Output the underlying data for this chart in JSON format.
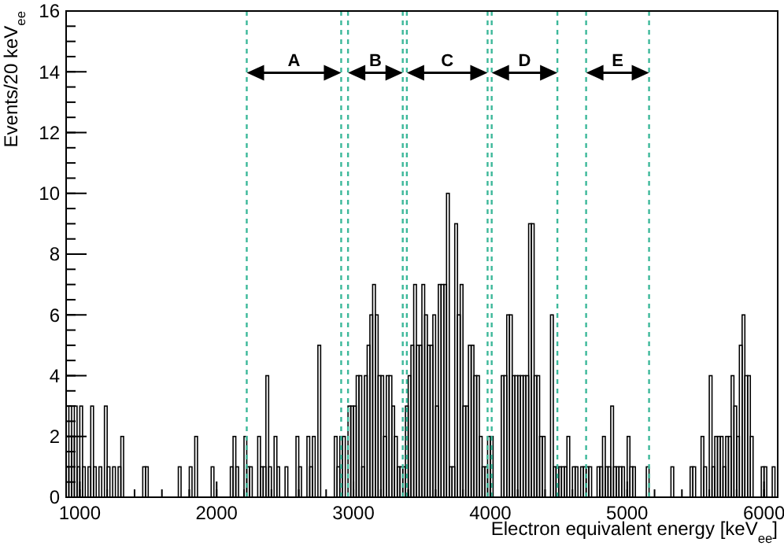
{
  "chart_data": {
    "type": "histogram",
    "xlabel": "Electron equivalent energy [keV$_{ee}$]",
    "ylabel": "Events/20 keV$_{ee}$",
    "bins": [
      900,
      920,
      940,
      960,
      980,
      1000,
      1020,
      1040,
      1060,
      1080,
      1100,
      1120,
      1140,
      1160,
      1180,
      1200,
      1220,
      1240,
      1260,
      1280,
      1300,
      1320,
      1340,
      1360,
      1380,
      1400,
      1420,
      1440,
      1460,
      1480,
      1500,
      1520,
      1540,
      1560,
      1580,
      1600,
      1620,
      1640,
      1660,
      1680,
      1700,
      1720,
      1740,
      1760,
      1780,
      1800,
      1820,
      1840,
      1860,
      1880,
      1900,
      1920,
      1940,
      1960,
      1980,
      2000,
      2020,
      2040,
      2060,
      2080,
      2100,
      2120,
      2140,
      2160,
      2180,
      2200,
      2220,
      2240,
      2260,
      2280,
      2300,
      2320,
      2340,
      2360,
      2380,
      2400,
      2420,
      2440,
      2460,
      2480,
      2500,
      2520,
      2540,
      2560,
      2580,
      2600,
      2620,
      2640,
      2660,
      2680,
      2700,
      2720,
      2740,
      2760,
      2780,
      2800,
      2820,
      2840,
      2860,
      2880,
      2900,
      2920,
      2940,
      2960,
      2980,
      3000,
      3020,
      3040,
      3060,
      3080,
      3100,
      3120,
      3140,
      3160,
      3180,
      3200,
      3220,
      3240,
      3260,
      3280,
      3300,
      3320,
      3340,
      3360,
      3380,
      3400,
      3420,
      3440,
      3460,
      3480,
      3500,
      3520,
      3540,
      3560,
      3580,
      3600,
      3620,
      3640,
      3660,
      3680,
      3700,
      3720,
      3740,
      3760,
      3780,
      3800,
      3820,
      3840,
      3860,
      3880,
      3900,
      3920,
      3940,
      3960,
      3980,
      4000,
      4020,
      4040,
      4060,
      4080,
      4100,
      4120,
      4140,
      4160,
      4180,
      4200,
      4220,
      4240,
      4260,
      4280,
      4300,
      4320,
      4340,
      4360,
      4380,
      4400,
      4420,
      4440,
      4460,
      4480,
      4500,
      4520,
      4540,
      4560,
      4580,
      4600,
      4620,
      4640,
      4660,
      4680,
      4700,
      4720,
      4740,
      4760,
      4780,
      4800,
      4820,
      4840,
      4860,
      4880,
      4900,
      4920,
      4940,
      4960,
      4980,
      5000,
      5020,
      5040,
      5060,
      5080,
      5100,
      5120,
      5140,
      5160,
      5180,
      5200,
      5220,
      5240,
      5260,
      5280,
      5300,
      5320,
      5340,
      5360,
      5380,
      5400,
      5420,
      5440,
      5460,
      5480,
      5500,
      5520,
      5540,
      5560,
      5580,
      5600,
      5620,
      5640,
      5660,
      5680,
      5700,
      5720,
      5740,
      5760,
      5780,
      5800,
      5820,
      5840,
      5860,
      5880,
      5900,
      5920,
      5940,
      5960,
      5980,
      6000,
      6020,
      6040,
      6060,
      6080,
      6100
    ],
    "values": [
      1,
      3,
      2,
      3,
      1,
      3,
      1,
      0,
      1,
      3,
      1,
      0,
      1,
      0,
      3,
      1,
      0,
      1,
      0,
      1,
      2,
      0,
      0,
      0,
      0,
      0,
      0,
      0,
      1,
      1,
      0,
      0,
      0,
      0,
      0,
      0,
      0,
      0,
      0,
      0,
      0,
      1,
      0,
      0,
      0,
      1,
      0,
      2,
      0,
      0,
      0,
      0,
      0,
      1,
      0,
      0,
      0,
      0,
      0,
      0,
      1,
      2,
      1,
      0,
      0,
      2,
      1,
      1,
      0,
      0,
      2,
      1,
      1,
      4,
      1,
      0,
      2,
      1,
      0,
      0,
      1,
      0,
      0,
      0,
      2,
      1,
      0,
      0,
      2,
      1,
      2,
      0,
      5,
      0,
      0,
      0,
      0,
      0,
      2,
      1,
      2,
      2,
      0,
      3,
      3,
      3,
      4,
      4,
      1,
      4,
      5,
      6,
      7,
      6,
      4,
      4,
      2,
      4,
      4,
      3,
      2,
      1,
      1,
      1,
      3,
      4,
      5,
      7,
      5,
      5,
      7,
      6,
      5,
      5,
      6,
      3,
      7,
      7,
      7,
      10,
      1,
      1,
      9,
      6,
      7,
      3,
      3,
      5,
      5,
      4,
      4,
      2,
      1,
      1,
      2,
      2,
      0,
      0,
      0,
      4,
      4,
      6,
      6,
      4,
      4,
      4,
      4,
      4,
      4,
      9,
      9,
      4,
      4,
      2,
      2,
      0,
      0,
      6,
      1,
      1,
      1,
      1,
      1,
      2,
      0,
      1,
      1,
      0,
      1,
      1,
      1,
      1,
      0,
      0,
      1,
      1,
      2,
      1,
      1,
      3,
      1,
      1,
      1,
      1,
      0,
      2,
      1,
      1,
      0,
      0,
      0,
      0,
      1,
      0,
      0,
      0,
      0,
      0,
      0,
      0,
      0,
      1,
      0,
      0,
      0,
      0,
      0,
      0,
      1,
      1,
      0,
      0,
      2,
      1,
      0,
      4,
      1,
      2,
      2,
      2,
      1,
      2,
      2,
      4,
      3,
      2,
      5,
      6,
      4,
      4,
      2,
      0,
      0,
      0,
      1,
      1,
      0,
      0,
      1,
      0
    ],
    "color": "#000000",
    "xlim": [
      900,
      6100
    ],
    "xticks": [
      1000,
      2000,
      3000,
      4000,
      5000,
      6000
    ],
    "ylim": [
      0,
      16
    ],
    "yticks": [
      0,
      2,
      4,
      6,
      8,
      10,
      12,
      14,
      16
    ],
    "ref_lines": [
      {
        "axis": "x",
        "value": 2220,
        "color": "#3cb89a",
        "line_style": "dashed"
      },
      {
        "axis": "x",
        "value": 2910,
        "color": "#3cb89a",
        "line_style": "dashed"
      },
      {
        "axis": "x",
        "value": 2960,
        "color": "#3cb89a",
        "line_style": "dashed"
      },
      {
        "axis": "x",
        "value": 3360,
        "color": "#3cb89a",
        "line_style": "dashed"
      },
      {
        "axis": "x",
        "value": 3390,
        "color": "#3cb89a",
        "line_style": "dashed"
      },
      {
        "axis": "x",
        "value": 3980,
        "color": "#3cb89a",
        "line_style": "dashed"
      },
      {
        "axis": "x",
        "value": 4010,
        "color": "#3cb89a",
        "line_style": "dashed"
      },
      {
        "axis": "x",
        "value": 4490,
        "color": "#3cb89a",
        "line_style": "dashed"
      },
      {
        "axis": "x",
        "value": 4700,
        "color": "#3cb89a",
        "line_style": "dashed"
      },
      {
        "axis": "x",
        "value": 5160,
        "color": "#3cb89a",
        "line_style": "dashed"
      }
    ],
    "annotations": [
      "A",
      "B",
      "C",
      "D",
      "E"
    ],
    "grid": false
  }
}
